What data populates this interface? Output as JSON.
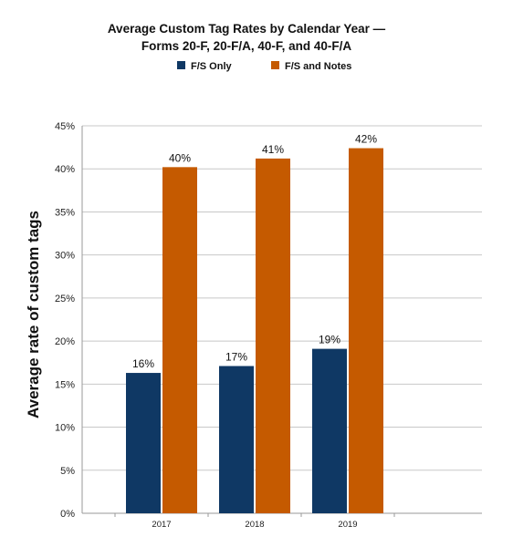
{
  "chart_data": {
    "type": "bar",
    "title_lines": [
      "Average Custom Tag Rates by Calendar Year —",
      "Forms 20-F, 20-F/A, 40-F, and 40-F/A"
    ],
    "xlabel": "",
    "ylabel": "Average rate of custom tags",
    "categories": [
      "2017",
      "2018",
      "2019"
    ],
    "series": [
      {
        "name": "F/S Only",
        "color": "#0f3864",
        "values": [
          16.3,
          17.1,
          19.1
        ],
        "labels": [
          "16%",
          "17%",
          "19%"
        ]
      },
      {
        "name": "F/S and Notes",
        "color": "#c55a00",
        "values": [
          40.2,
          41.2,
          42.4
        ],
        "labels": [
          "40%",
          "41%",
          "42%"
        ]
      }
    ],
    "ylim": [
      0,
      45
    ],
    "yticks": [
      0,
      5,
      10,
      15,
      20,
      25,
      30,
      35,
      40,
      45
    ],
    "ytick_labels": [
      "0%",
      "5%",
      "10%",
      "15%",
      "20%",
      "25%",
      "30%",
      "35%",
      "40%",
      "45%"
    ],
    "grid": true,
    "legend_position": "top"
  }
}
